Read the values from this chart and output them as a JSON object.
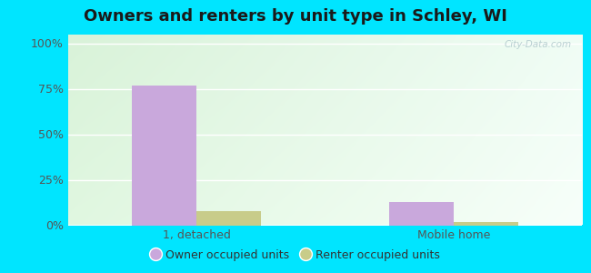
{
  "title": "Owners and renters by unit type in Schley, WI",
  "categories": [
    "1, detached",
    "Mobile home"
  ],
  "owner_values": [
    77.0,
    13.0
  ],
  "renter_values": [
    8.0,
    2.0
  ],
  "owner_color": "#c9a8dc",
  "renter_color": "#c8cc8a",
  "yticks": [
    0,
    25,
    50,
    75,
    100
  ],
  "ytick_labels": [
    "0%",
    "25%",
    "50%",
    "75%",
    "100%"
  ],
  "ylim": [
    0,
    105
  ],
  "bar_width": 0.25,
  "background_outer": "#00e5ff",
  "bg_gradient_left": "#d4edcc",
  "bg_gradient_right": "#e8f8f2",
  "bg_gradient_top": "#e8f8f0",
  "watermark": "City-Data.com",
  "legend_labels": [
    "Owner occupied units",
    "Renter occupied units"
  ],
  "title_fontsize": 13,
  "tick_fontsize": 9,
  "legend_fontsize": 9
}
